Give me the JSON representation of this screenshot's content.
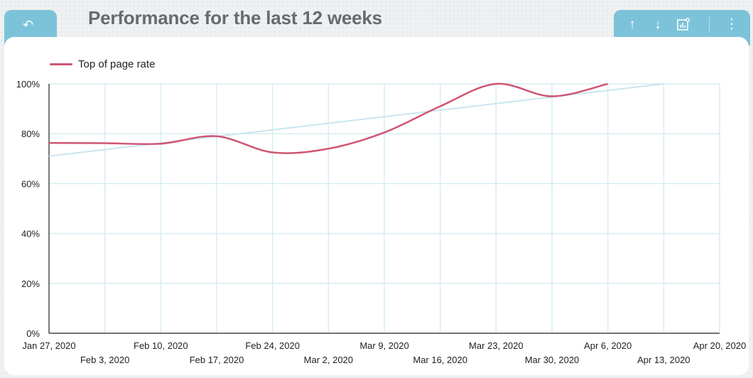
{
  "header": {
    "title": "Performance for the last 12 weeks",
    "back_icon": "undo-arrow-icon",
    "toolbar_icons": [
      "arrow-up-icon",
      "arrow-down-icon",
      "chart-settings-icon",
      "more-vertical-icon"
    ]
  },
  "legend": {
    "label": "Top of page rate"
  },
  "colors": {
    "series": "#cf5572",
    "trend": "#c9e6ef",
    "grid": "#d5eef2",
    "accent": "#7cc3d9"
  },
  "chart_data": {
    "type": "line",
    "x": [
      "Jan 27, 2020",
      "Feb 3, 2020",
      "Feb 10, 2020",
      "Feb 17, 2020",
      "Feb 24, 2020",
      "Mar 2, 2020",
      "Mar 9, 2020",
      "Mar 16, 2020",
      "Mar 23, 2020",
      "Mar 30, 2020",
      "Apr 6, 2020",
      "Apr 13, 2020",
      "Apr 20, 2020"
    ],
    "series": [
      {
        "name": "Top of page rate",
        "values": [
          76.3,
          76.2,
          76.0,
          79.0,
          72.5,
          74.0,
          80.5,
          91.0,
          100,
          95.0,
          100,
          null,
          null
        ]
      }
    ],
    "trendline": {
      "start": 71.0,
      "end": 100
    },
    "yticks": [
      "0%",
      "20%",
      "40%",
      "60%",
      "80%",
      "100%"
    ],
    "ylim": [
      0,
      100
    ],
    "grid": true,
    "legend_position": "top-left"
  }
}
